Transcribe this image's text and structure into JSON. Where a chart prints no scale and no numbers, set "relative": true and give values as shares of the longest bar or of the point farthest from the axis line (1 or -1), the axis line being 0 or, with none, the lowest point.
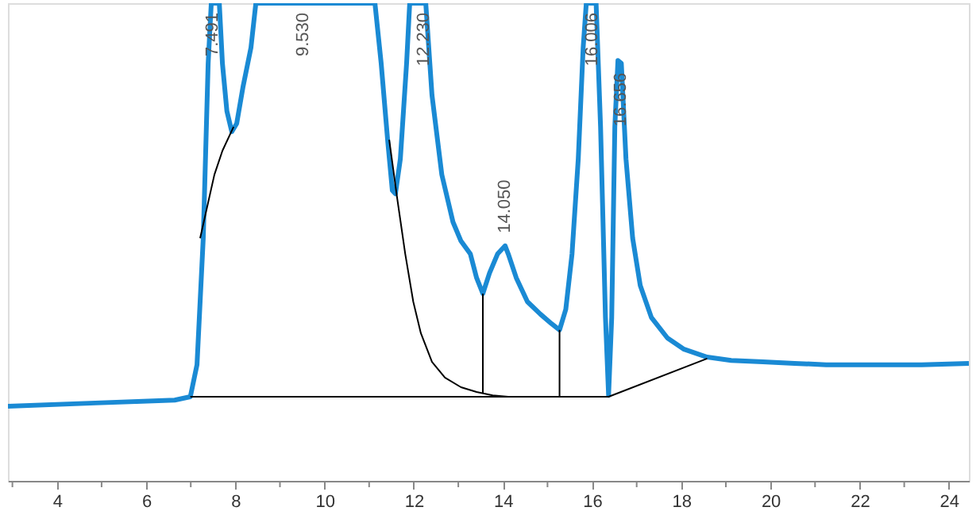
{
  "chart_data": {
    "type": "line",
    "relative": true,
    "marker": "none",
    "line_style": "solid",
    "grid": false,
    "xlim": [
      2.9,
      24.45
    ],
    "xticks": [
      {
        "value": 3,
        "label": null
      },
      4,
      {
        "value": 5,
        "label": null
      },
      6,
      {
        "value": 7,
        "label": null
      },
      8,
      {
        "value": 9,
        "label": null
      },
      10,
      {
        "value": 11,
        "label": null
      },
      12,
      {
        "value": 13,
        "label": null
      },
      14,
      {
        "value": 15,
        "label": null
      },
      16,
      {
        "value": 17,
        "label": null
      },
      18,
      {
        "value": 19,
        "label": null
      },
      20,
      {
        "value": 21,
        "label": null
      },
      22,
      {
        "value": 23,
        "label": null
      },
      24
    ],
    "series": [
      {
        "color": "#1a8ad4",
        "x": [
          2.9,
          4.86,
          6.64,
          6.99,
          7.14,
          7.28,
          7.39,
          7.46,
          7.53,
          7.64,
          7.71,
          7.81,
          7.92,
          8.03,
          8.17,
          8.35,
          8.46,
          11.13,
          11.27,
          11.42,
          11.52,
          11.59,
          11.7,
          11.84,
          11.91,
          12.27,
          12.41,
          12.63,
          12.88,
          13.06,
          13.27,
          13.41,
          13.55,
          13.7,
          13.88,
          14.05,
          14.12,
          14.3,
          14.55,
          14.84,
          15.09,
          15.27,
          15.41,
          15.55,
          15.69,
          15.8,
          15.87,
          16.09,
          16.19,
          16.3,
          16.37,
          16.44,
          16.51,
          16.58,
          16.656,
          16.76,
          16.91,
          17.08,
          17.33,
          17.69,
          18.05,
          18.58,
          19.12,
          19.83,
          20.54,
          21.25,
          22.32,
          23.39,
          24.45
        ],
        "values": [
          0.156,
          0.163,
          0.169,
          0.176,
          0.243,
          0.508,
          0.874,
          1.0,
          1.0,
          1.0,
          0.874,
          0.774,
          0.731,
          0.748,
          0.824,
          0.907,
          1.0,
          1.0,
          0.874,
          0.708,
          0.608,
          0.601,
          0.674,
          0.874,
          1.0,
          1.0,
          0.807,
          0.641,
          0.542,
          0.502,
          0.475,
          0.425,
          0.392,
          0.435,
          0.475,
          0.492,
          0.475,
          0.425,
          0.375,
          0.349,
          0.329,
          0.316,
          0.359,
          0.475,
          0.674,
          0.907,
          1.0,
          1.0,
          0.741,
          0.342,
          0.179,
          0.342,
          0.741,
          0.88,
          0.874,
          0.674,
          0.508,
          0.409,
          0.342,
          0.299,
          0.276,
          0.259,
          0.252,
          0.249,
          0.246,
          0.243,
          0.243,
          0.243,
          0.246
        ]
      },
      {
        "color": "#000000",
        "x": [
          6.99,
          16.37,
          18.58
        ],
        "values": [
          0.176,
          0.176,
          0.256
        ]
      },
      {
        "color": "#000000",
        "x": [
          7.21,
          7.53,
          7.71,
          7.96
        ],
        "values": [
          0.508,
          0.641,
          0.691,
          0.741
        ]
      },
      {
        "color": "#000000",
        "x": [
          11.45,
          11.63,
          11.81,
          11.99,
          12.16,
          12.41,
          12.7,
          13.06,
          13.41,
          13.77,
          14.12
        ],
        "values": [
          0.714,
          0.591,
          0.475,
          0.375,
          0.309,
          0.249,
          0.216,
          0.196,
          0.186,
          0.179,
          0.176
        ]
      },
      {
        "color": "#000000",
        "x": [
          13.55,
          13.55
        ],
        "values": [
          0.392,
          0.183
        ]
      },
      {
        "color": "#000000",
        "x": [
          15.27,
          15.27
        ],
        "values": [
          0.316,
          0.176
        ]
      }
    ],
    "annotations": [
      {
        "text": "7.491",
        "x": 7.491,
        "y": 1.0
      },
      {
        "text": "9.530",
        "x": 9.53,
        "y": 1.0
      },
      {
        "text": "12.230",
        "x": 12.23,
        "y": 1.0
      },
      {
        "text": "14.050",
        "x": 14.05,
        "y": 0.492
      },
      {
        "text": "16.006",
        "x": 16.006,
        "y": 1.0
      },
      {
        "text": "16.656",
        "x": 16.656,
        "y": 0.874
      }
    ]
  }
}
